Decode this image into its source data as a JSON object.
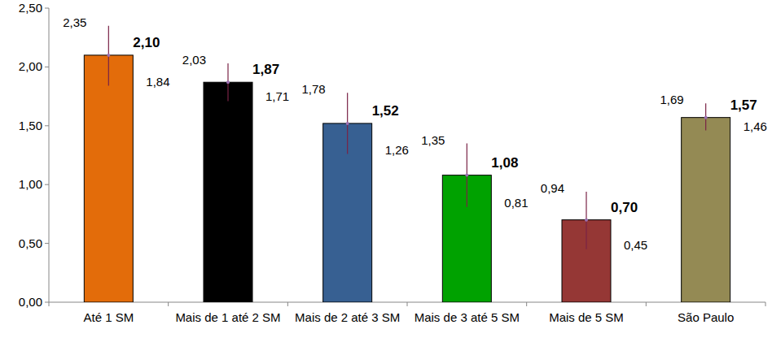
{
  "chart_data": {
    "type": "bar",
    "categories": [
      "Até 1 SM",
      "Mais de 1 até 2 SM",
      "Mais de 2 até 3 SM",
      "Mais de 3 até 5 SM",
      "Mais de 5 SM",
      "São Paulo"
    ],
    "values": [
      2.1,
      1.87,
      1.52,
      1.08,
      0.7,
      1.57
    ],
    "value_labels": [
      "2,10",
      "1,87",
      "1,52",
      "1,08",
      "0,70",
      "1,57"
    ],
    "upper": [
      2.35,
      2.03,
      1.78,
      1.35,
      0.94,
      1.69
    ],
    "upper_labels": [
      "2,35",
      "2,03",
      "1,78",
      "1,35",
      "0,94",
      "1,69"
    ],
    "lower": [
      1.84,
      1.71,
      1.26,
      0.81,
      0.45,
      1.46
    ],
    "lower_labels": [
      "1,84",
      "1,71",
      "1,26",
      "0,81",
      "0,45",
      "1,46"
    ],
    "colors": [
      "#e36c0a",
      "#000000",
      "#376092",
      "#00a200",
      "#953735",
      "#948a54"
    ],
    "ylim": [
      0,
      2.5
    ],
    "yticks": [
      {
        "value": 0,
        "label": "0,00"
      },
      {
        "value": 0.5,
        "label": "0,50"
      },
      {
        "value": 1,
        "label": "1,00"
      },
      {
        "value": 1.5,
        "label": "1,50"
      },
      {
        "value": 2,
        "label": "2,00"
      },
      {
        "value": 2.5,
        "label": "2,50"
      }
    ],
    "grid": false,
    "data_labels": true
  }
}
